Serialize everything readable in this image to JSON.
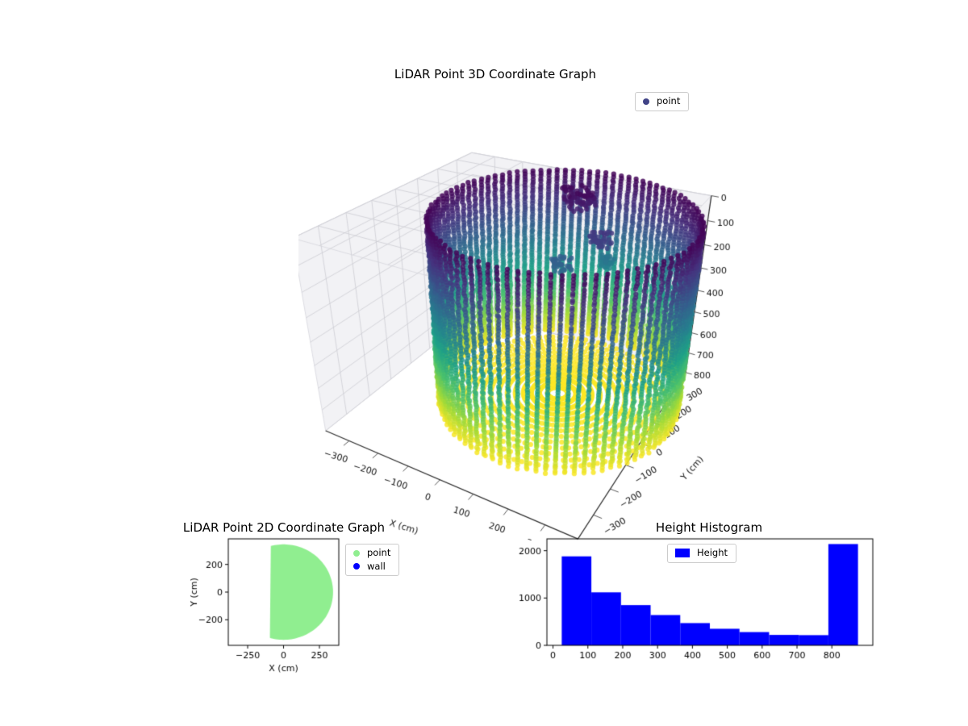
{
  "figure": {
    "background": "#ffffff"
  },
  "chart_data": [
    {
      "id": "lidar-3d",
      "type": "scatter3d",
      "title": "LiDAR Point 3D Coordinate Graph",
      "xlabel": "X (cm)",
      "ylabel": "Y (cm)",
      "legend": [
        {
          "label": "point",
          "color": "#414487"
        }
      ],
      "xticks": [
        -300,
        -200,
        -100,
        0,
        100,
        200,
        300
      ],
      "yticks": [
        -300,
        -200,
        -100,
        0,
        100,
        200,
        300
      ],
      "zticks": [
        0,
        100,
        200,
        300,
        400,
        500,
        600,
        700,
        800
      ],
      "xlim": [
        -385,
        385
      ],
      "ylim": [
        -385,
        385
      ],
      "zlim": [
        0,
        800
      ],
      "z_inverted": true,
      "colormap": "viridis",
      "viridis_stops": [
        "#440154",
        "#46327e",
        "#365c8d",
        "#277f8e",
        "#1fa187",
        "#4ac16d",
        "#a0da39",
        "#fde725"
      ],
      "cloud": {
        "center": {
          "x": 90,
          "y": 90
        },
        "wall": {
          "radius": 350,
          "z_min": 12,
          "z_max": 800,
          "z_step": 12,
          "angle_step_deg": 4
        },
        "floor": {
          "z": 800,
          "r_min": 30,
          "r_max": 340,
          "r_step": 24
        },
        "blobs": [
          {
            "x": 40,
            "y": 280,
            "z": 50,
            "r": 50,
            "n": 70
          },
          {
            "x": 150,
            "y": 200,
            "z": 150,
            "r": 35,
            "n": 45
          },
          {
            "x": 60,
            "y": 150,
            "z": 260,
            "r": 30,
            "n": 35
          },
          {
            "x": 120,
            "y": 330,
            "z": 330,
            "r": 25,
            "n": 30
          }
        ]
      }
    },
    {
      "id": "lidar-2d",
      "type": "scatter",
      "title": "LiDAR Point 2D Coordinate Graph",
      "xlabel": "X (cm)",
      "ylabel": "Y (cm)",
      "legend": [
        {
          "label": "point",
          "color": "#90ee90"
        },
        {
          "label": "wall",
          "color": "#0000ff"
        }
      ],
      "xticks": [
        -250,
        0,
        250
      ],
      "yticks": [
        -200,
        0,
        200
      ],
      "xlim": [
        -385,
        385
      ],
      "ylim": [
        -385,
        385
      ],
      "region": {
        "shape": "clipped-disk",
        "radius": 345,
        "x_min": -95,
        "fill": "#90ee90"
      }
    },
    {
      "id": "height-histogram",
      "type": "bar",
      "title": "Height Histogram",
      "legend": [
        {
          "label": "Height",
          "color": "#0000ff"
        }
      ],
      "bar_color": "#0000ff",
      "bin_edges": [
        25,
        110,
        195,
        280,
        365,
        450,
        535,
        620,
        705,
        790,
        875
      ],
      "values": [
        1880,
        1120,
        850,
        640,
        470,
        350,
        280,
        220,
        215,
        2140
      ],
      "xticks": [
        0,
        100,
        200,
        300,
        400,
        500,
        600,
        700,
        800
      ],
      "yticks": [
        0,
        1000,
        2000
      ],
      "xlim": [
        -17.5,
        917.5
      ],
      "ylim": [
        0,
        2250
      ]
    }
  ]
}
